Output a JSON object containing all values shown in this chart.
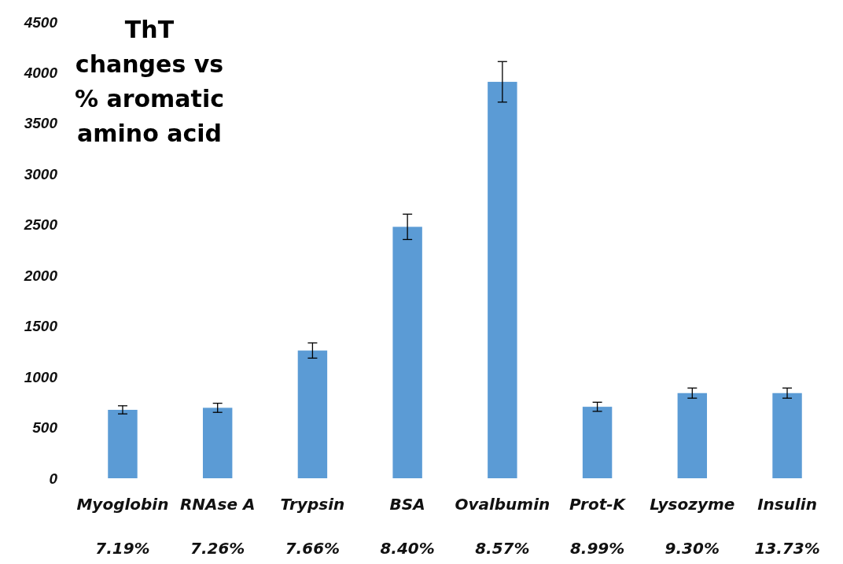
{
  "chart_data": {
    "type": "bar",
    "title": "ThT changes vs % aromatic amino acid",
    "categories": [
      "Myoglobin\n7.19%",
      "RNAse A\n7.26%",
      "Trypsin\n7.66%",
      "BSA\n8.40%",
      "Ovalbumin\n8.57%",
      "Prot-K\n8.99%",
      "Lysozyme\n9.30%",
      "Insulin\n13.73%"
    ],
    "values": [
      675,
      695,
      1260,
      2480,
      3910,
      705,
      840,
      840
    ],
    "errors": [
      40,
      45,
      75,
      125,
      200,
      45,
      50,
      50
    ],
    "color": "#5b9bd5",
    "ylim": [
      0,
      4500
    ],
    "yticks": [
      0,
      500,
      1000,
      1500,
      2000,
      2500,
      3000,
      3500,
      4000,
      4500
    ],
    "grid": false
  }
}
